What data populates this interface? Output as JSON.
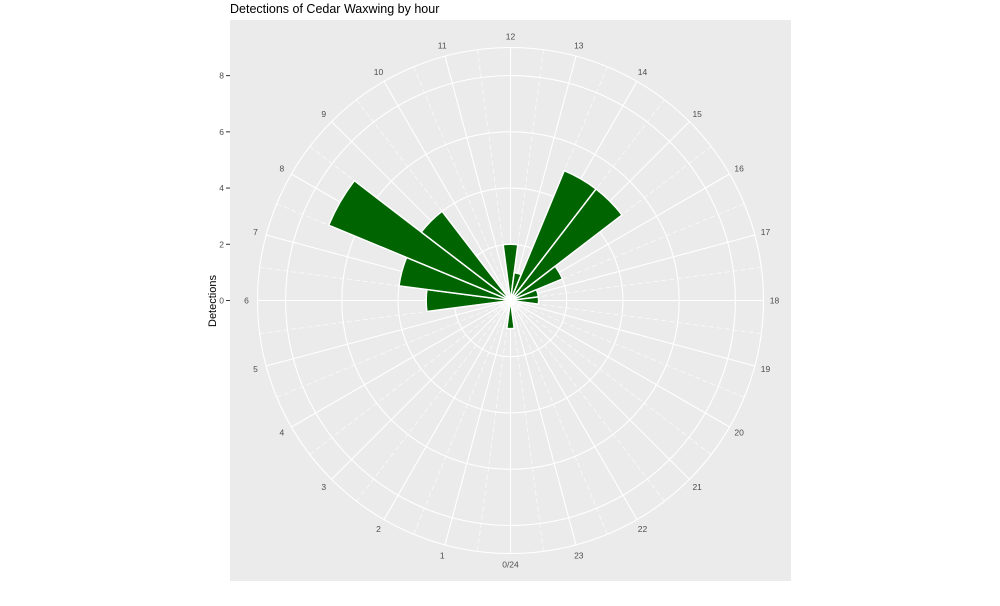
{
  "chart_data": {
    "type": "bar",
    "coord": "polar",
    "title": "Detections of Cedar Waxwing by hour",
    "xlabel": "",
    "ylabel": "Detections",
    "categories": [
      "0/24",
      "1",
      "2",
      "3",
      "4",
      "5",
      "6",
      "7",
      "8",
      "9",
      "10",
      "11",
      "12",
      "13",
      "14",
      "15",
      "16",
      "17",
      "18",
      "19",
      "20",
      "21",
      "22",
      "23"
    ],
    "values": [
      1,
      0,
      0,
      0,
      0,
      0,
      3,
      4,
      7,
      4,
      0,
      0,
      2,
      1,
      5,
      5,
      2,
      1,
      1,
      0,
      0,
      0,
      0,
      0
    ],
    "yticks": [
      0,
      2,
      4,
      6,
      8
    ],
    "ylim": [
      0,
      9
    ],
    "bar_color": "#006400",
    "panel_color": "#ebebeb",
    "grid_color": "#ffffff"
  }
}
